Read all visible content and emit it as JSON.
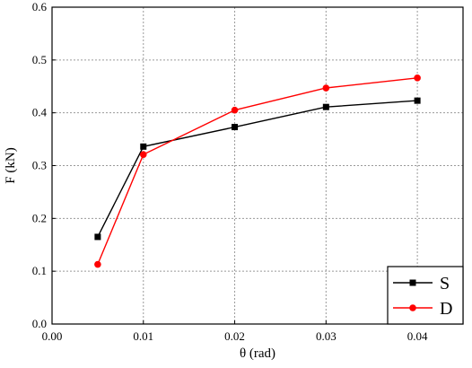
{
  "chart_data": {
    "type": "line",
    "title": "",
    "xlabel": "θ (rad)",
    "ylabel": "F (kN)",
    "xlim": [
      0.0,
      0.045
    ],
    "ylim": [
      0.0,
      0.6
    ],
    "x_ticks": [
      0.0,
      0.01,
      0.02,
      0.03,
      0.04
    ],
    "x_tick_labels": [
      "0.00",
      "0.01",
      "0.02",
      "0.03",
      "0.04"
    ],
    "y_ticks": [
      0.0,
      0.1,
      0.2,
      0.3,
      0.4,
      0.5,
      0.6
    ],
    "y_tick_labels": [
      "0.0",
      "0.1",
      "0.2",
      "0.3",
      "0.4",
      "0.5",
      "0.6"
    ],
    "grid": true,
    "legend_position": "bottom-right",
    "series": [
      {
        "name": "S",
        "color": "#000000",
        "marker": "square",
        "x": [
          0.005,
          0.01,
          0.02,
          0.03,
          0.04
        ],
        "y": [
          0.165,
          0.336,
          0.373,
          0.411,
          0.423
        ]
      },
      {
        "name": "D",
        "color": "#ff0000",
        "marker": "circle",
        "x": [
          0.005,
          0.01,
          0.02,
          0.03,
          0.04
        ],
        "y": [
          0.113,
          0.321,
          0.405,
          0.447,
          0.466
        ]
      }
    ]
  }
}
